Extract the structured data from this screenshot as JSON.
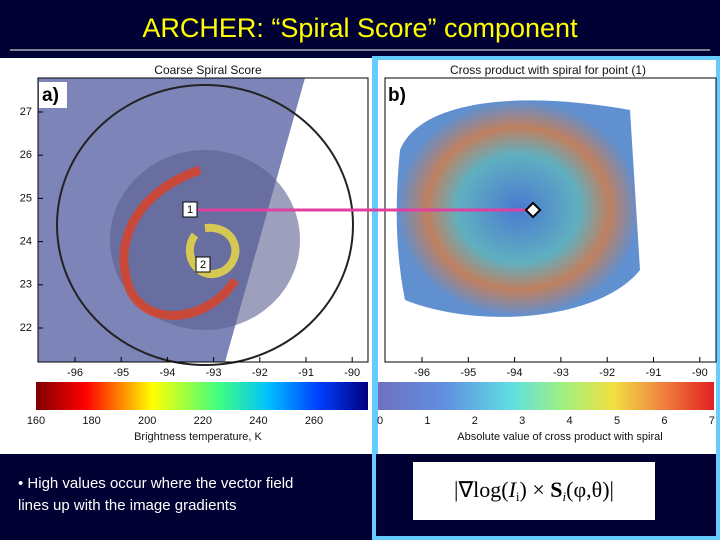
{
  "title": "ARCHER: “Spiral Score” component",
  "panel_a": {
    "label": "a)",
    "title": "Coarse Spiral Score",
    "yticks": [
      27,
      26,
      25,
      24,
      23,
      22
    ],
    "xticks": [
      -96,
      -95,
      -94,
      -93,
      -92,
      -91,
      -90
    ],
    "markers": [
      "1",
      "2"
    ]
  },
  "colorbar_a": {
    "ticks": [
      160,
      180,
      200,
      220,
      240,
      260
    ],
    "label": "Brightness temperature, K"
  },
  "panel_b": {
    "label": "b)",
    "title": "Cross product with spiral for point (1)",
    "xticks": [
      -96,
      -95,
      -94,
      -93,
      -92,
      -91,
      -90
    ]
  },
  "colorbar_b": {
    "ticks": [
      0,
      1,
      2,
      3,
      4,
      5,
      6,
      7
    ],
    "label": "Absolute value of cross product with spiral"
  },
  "bullet": {
    "lines": [
      "• High values occur where the vector field",
      "lines up with the image gradients"
    ]
  },
  "formula": {
    "parts": [
      "∇log(",
      "I",
      "i",
      ") × ",
      "S",
      "i",
      "(φ,θ)"
    ]
  }
}
